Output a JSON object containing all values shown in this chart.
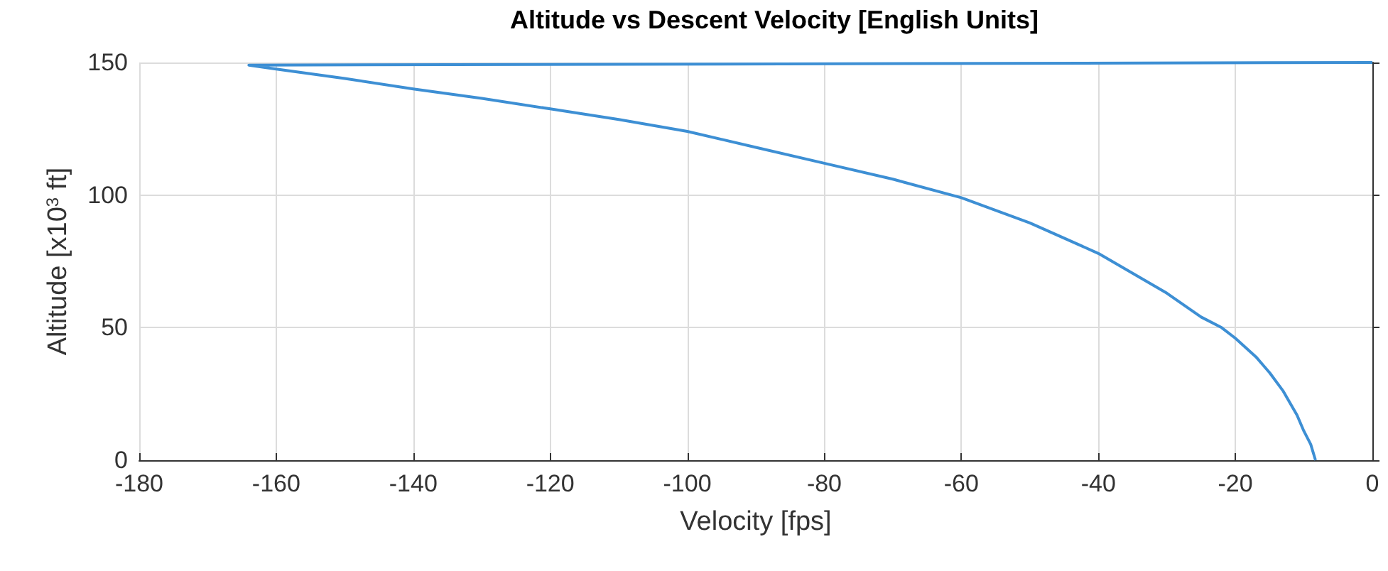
{
  "chart_data": {
    "type": "line",
    "title": "Altitude vs Descent Velocity [English Units]",
    "xlabel": "Velocity [fps]",
    "ylabel": "Altitude [x10$^{3}$ ft]",
    "series": [
      {
        "color": "#3d8fd4",
        "x": [
          0,
          -164,
          -160,
          -150,
          -140,
          -130,
          -120,
          -110,
          -100,
          -90,
          -80,
          -70,
          -60,
          -50,
          -40,
          -30,
          -25,
          -22,
          -20,
          -17,
          -15,
          -13,
          -11,
          -10,
          -9,
          -8.3
        ],
        "values": [
          150,
          149,
          147.5,
          144,
          140,
          136.5,
          132.5,
          128.5,
          124,
          118,
          112,
          106,
          99,
          89.5,
          78,
          63,
          54,
          50,
          46,
          39,
          33,
          26,
          17,
          11,
          6,
          0
        ]
      }
    ],
    "xlim": [
      -180,
      0
    ],
    "xticks": [
      -180,
      -160,
      -140,
      -120,
      -100,
      -80,
      -60,
      -40,
      -20,
      0
    ],
    "ylim": [
      0,
      150
    ],
    "yticks": [
      0,
      50,
      100,
      150
    ],
    "grid": true,
    "marker": "none",
    "line_style": "solid"
  }
}
